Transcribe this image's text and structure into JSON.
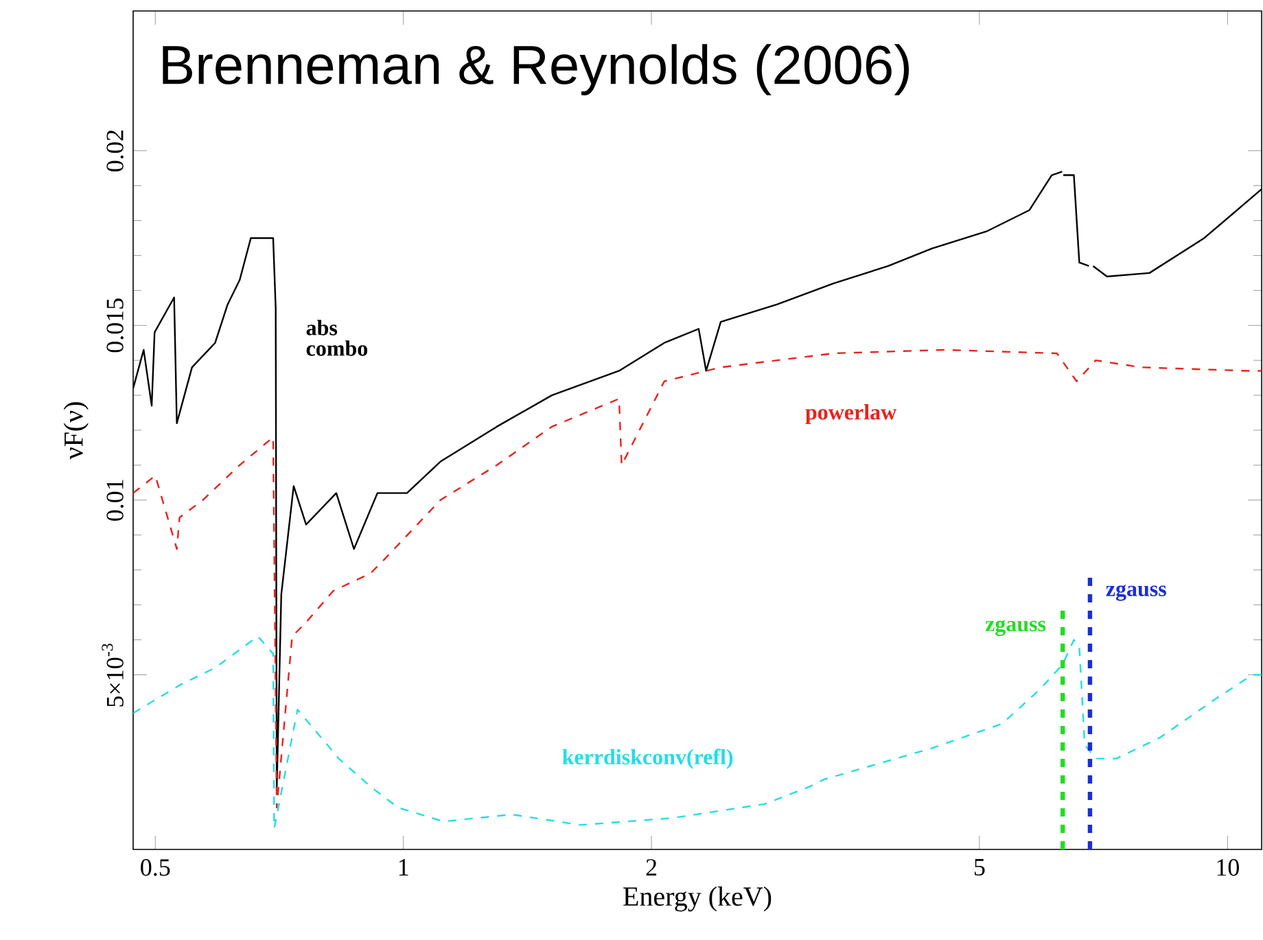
{
  "chart_data": {
    "type": "line",
    "title": "Brenneman & Reynolds (2006)",
    "xlabel": "Energy (keV)",
    "ylabel": "νF(ν)",
    "log": "x",
    "xlim": [
      0.47,
      11
    ],
    "ylim": [
      0,
      0.024
    ],
    "xticks": [
      0.5,
      1,
      2,
      5,
      10
    ],
    "yticks": [
      {
        "value": 0.005,
        "label": "5×10$^{-3}$"
      },
      0.01,
      0.015,
      0.02
    ],
    "series": [
      {
        "name": "abs combo",
        "color": "#000000",
        "line_style": "solid",
        "x": [
          0.47,
          0.484,
          0.495,
          0.499,
          0.527,
          0.531,
          0.554,
          0.591,
          0.612,
          0.633,
          0.653,
          0.695,
          0.7,
          0.702,
          0.711,
          0.736,
          0.762,
          0.829,
          0.871,
          0.93,
          1.01,
          1.109,
          1.298,
          1.514,
          1.827,
          2.073,
          2.282,
          2.33,
          2.427,
          2.841,
          3.325,
          3.876,
          4.38,
          5.11,
          5.75,
          6.12,
          6.3,
          6.31,
          6.32,
          6.51,
          6.61,
          6.79,
          6.81,
          6.87,
          7.14,
          8.04,
          9.37,
          11
        ],
        "values": [
          0.0132,
          0.0143,
          0.0127,
          0.0148,
          0.0158,
          0.0122,
          0.0138,
          0.0145,
          0.0156,
          0.0163,
          0.0175,
          0.0175,
          0.0155,
          0.0017,
          0.0073,
          0.0104,
          0.0093,
          0.0102,
          0.0086,
          0.0102,
          0.0102,
          0.0111,
          0.0121,
          0.013,
          0.0137,
          0.0145,
          0.0149,
          0.0137,
          0.0151,
          0.0156,
          0.0162,
          0.0167,
          0.0172,
          0.0177,
          0.0183,
          0.0193,
          0.0194,
          null,
          0.0193,
          0.0193,
          0.0168,
          0.0167,
          null,
          0.0167,
          0.0164,
          0.0165,
          0.0175,
          0.0189
        ]
      },
      {
        "name": "powerlaw",
        "color": "#e8231c",
        "line_style": "dashed",
        "x": [
          0.47,
          0.5,
          0.531,
          0.535,
          0.571,
          0.633,
          0.695,
          0.702,
          0.733,
          0.762,
          0.822,
          0.912,
          0.948,
          1.109,
          1.298,
          1.514,
          1.827,
          1.84,
          2.073,
          2.427,
          2.841,
          3.325,
          4.536,
          6.21,
          6.56,
          6.92,
          7.85,
          10.55,
          11
        ],
        "values": [
          0.0102,
          0.0107,
          0.0086,
          0.0095,
          0.01,
          0.011,
          0.0118,
          0.0012,
          0.0061,
          0.0065,
          0.0074,
          0.0079,
          0.0083,
          0.01,
          0.011,
          0.0121,
          0.0129,
          0.011,
          0.0134,
          0.0138,
          0.014,
          0.0142,
          0.0143,
          0.0142,
          0.0134,
          0.014,
          0.0138,
          0.0137,
          0.0137
        ]
      },
      {
        "name": "kerrdiskconv(refl)",
        "color": "#22dde8",
        "line_style": "dashed",
        "x": [
          0.47,
          0.535,
          0.591,
          0.666,
          0.695,
          0.697,
          0.744,
          0.782,
          0.835,
          0.912,
          0.985,
          1.118,
          1.354,
          1.641,
          2.122,
          2.744,
          3.113,
          3.236,
          4.38,
          5.33,
          5.93,
          6.31,
          6.51,
          6.61,
          6.71,
          6.92,
          7.33,
          8.28,
          9.66,
          10.72,
          11
        ],
        "values": [
          0.0039,
          0.0047,
          0.0052,
          0.0061,
          0.0056,
          0.0006,
          0.004,
          0.0034,
          0.0026,
          0.0018,
          0.0012,
          0.0008,
          0.001,
          0.0007,
          0.0009,
          0.0013,
          0.0018,
          0.002,
          0.0029,
          0.0036,
          0.0046,
          0.0053,
          0.006,
          0.0058,
          0.003,
          0.0026,
          0.0026,
          0.0032,
          0.0043,
          0.005,
          0.005
        ]
      },
      {
        "name": "zgauss",
        "color": "#22dd22",
        "line_style": "dashed",
        "x": [
          6.31,
          6.31
        ],
        "values": [
          0,
          0.007
        ]
      },
      {
        "name": "zgauss",
        "color": "#1a2fd6",
        "line_style": "dashed",
        "x": [
          6.81,
          6.81
        ],
        "values": [
          0,
          0.0078
        ]
      }
    ]
  }
}
